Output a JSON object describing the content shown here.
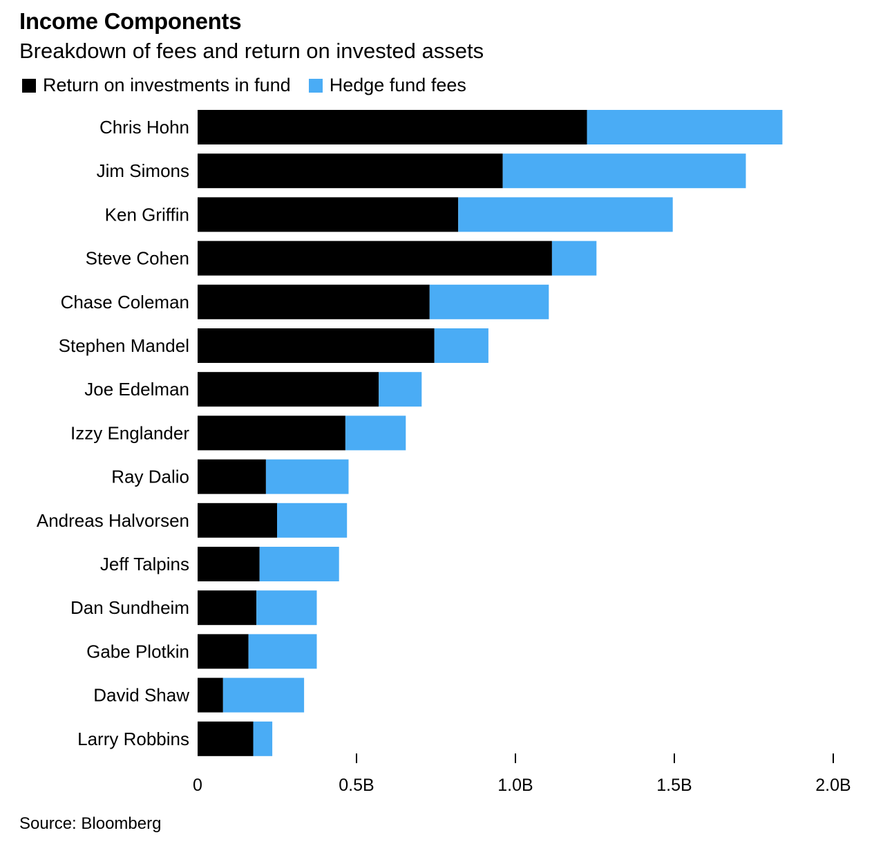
{
  "chart_data": {
    "type": "bar",
    "orientation": "horizontal",
    "stacked": true,
    "title": "Income Components",
    "subtitle": "Breakdown of fees and return on invested assets",
    "source": "Source: Bloomberg",
    "categories": [
      "Chris Hohn",
      "Jim Simons",
      "Ken Griffin",
      "Steve Cohen",
      "Chase Coleman",
      "Stephen Mandel",
      "Joe Edelman",
      "Izzy Englander",
      "Ray Dalio",
      "Andreas Halvorsen",
      "Jeff Talpins",
      "Dan Sundheim",
      "Gabe Plotkin",
      "David Shaw",
      "Larry Robbins"
    ],
    "series": [
      {
        "name": "Return on investments in fund",
        "color": "#000000",
        "values": [
          1.225,
          0.96,
          0.82,
          1.115,
          0.73,
          0.745,
          0.57,
          0.465,
          0.215,
          0.25,
          0.195,
          0.185,
          0.16,
          0.08,
          0.175
        ]
      },
      {
        "name": "Hedge fund fees",
        "color": "#4aacf5",
        "values": [
          0.615,
          0.765,
          0.675,
          0.14,
          0.375,
          0.17,
          0.135,
          0.19,
          0.26,
          0.22,
          0.25,
          0.19,
          0.215,
          0.255,
          0.06
        ]
      }
    ],
    "xlim": [
      0,
      2.0
    ],
    "x_ticks": [
      {
        "value": 0,
        "label": "0"
      },
      {
        "value": 0.5,
        "label": "0.5B"
      },
      {
        "value": 1.0,
        "label": "1.0B"
      },
      {
        "value": 1.5,
        "label": "1.5B"
      },
      {
        "value": 2.0,
        "label": "2.0B"
      }
    ],
    "grid": false,
    "legend_position": "top-left"
  }
}
